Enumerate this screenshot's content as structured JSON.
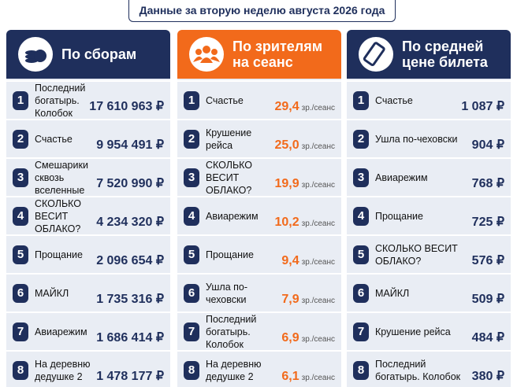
{
  "header": {
    "title": "Данные за вторую неделю августа 2026 года"
  },
  "columns": [
    {
      "title": "По сборам",
      "rows": [
        {
          "rank": "1",
          "name": "Последний богатырь. Колобок",
          "value": "17 610 963 ₽"
        },
        {
          "rank": "2",
          "name": "Счастье",
          "value": "9 954 491 ₽"
        },
        {
          "rank": "3",
          "name": "Смешарики сквозь вселенные",
          "value": "7 520 990 ₽"
        },
        {
          "rank": "4",
          "name": "СКОЛЬКО ВЕСИТ ОБЛАКО?",
          "value": "4 234 320 ₽"
        },
        {
          "rank": "5",
          "name": "Прощание",
          "value": "2 096 654 ₽"
        },
        {
          "rank": "6",
          "name": "МАЙКЛ",
          "value": "1 735 316 ₽"
        },
        {
          "rank": "7",
          "name": "Авиарежим",
          "value": "1 686 414 ₽"
        },
        {
          "rank": "8",
          "name": "На деревню дедушке 2",
          "value": "1 478 177 ₽"
        }
      ]
    },
    {
      "title": "По зрителям на сеанс",
      "unit": "зр./сеанс",
      "rows": [
        {
          "rank": "1",
          "name": "Счастье",
          "value": "29,4"
        },
        {
          "rank": "2",
          "name": "Крушение рейса",
          "value": "25,0"
        },
        {
          "rank": "3",
          "name": "СКОЛЬКО ВЕСИТ ОБЛАКО?",
          "value": "19,9"
        },
        {
          "rank": "4",
          "name": "Авиарежим",
          "value": "10,2"
        },
        {
          "rank": "5",
          "name": "Прощание",
          "value": "9,4"
        },
        {
          "rank": "6",
          "name": "Ушла по-чеховски",
          "value": "7,9"
        },
        {
          "rank": "7",
          "name": "Последний богатырь. Колобок",
          "value": "6,9"
        },
        {
          "rank": "8",
          "name": "На деревню дедушке 2",
          "value": "6,1"
        }
      ]
    },
    {
      "title": "По средней цене билета",
      "rows": [
        {
          "rank": "1",
          "name": "Счастье",
          "value": "1 087 ₽"
        },
        {
          "rank": "2",
          "name": "Ушла по-чеховски",
          "value": "904 ₽"
        },
        {
          "rank": "3",
          "name": "Авиарежим",
          "value": "768 ₽"
        },
        {
          "rank": "4",
          "name": "Прощание",
          "value": "725 ₽"
        },
        {
          "rank": "5",
          "name": "СКОЛЬКО ВЕСИТ ОБЛАКО?",
          "value": "576 ₽"
        },
        {
          "rank": "6",
          "name": "МАЙКЛ",
          "value": "509 ₽"
        },
        {
          "rank": "7",
          "name": "Крушение рейса",
          "value": "484 ₽"
        },
        {
          "rank": "8",
          "name": "Последний богатырь. Колобок",
          "value": "380 ₽"
        }
      ]
    }
  ]
}
